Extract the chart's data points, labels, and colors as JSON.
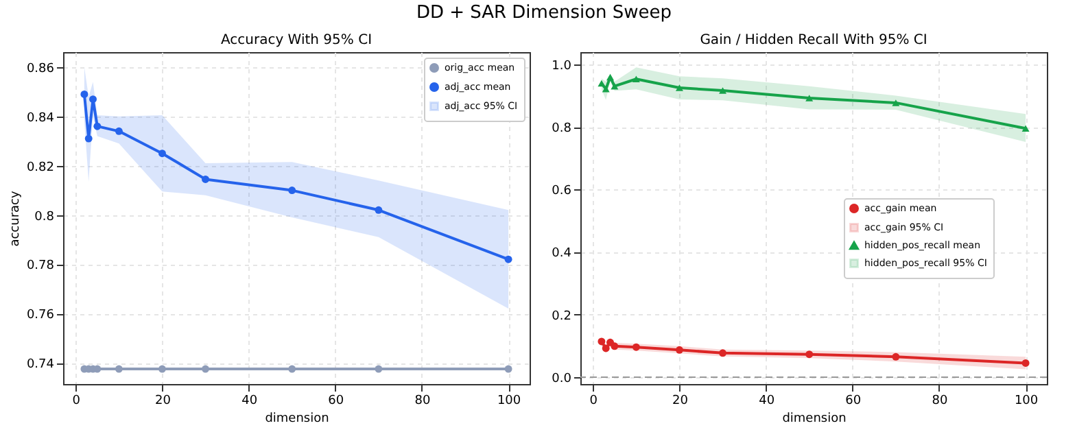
{
  "chart_data": [
    {
      "type": "line",
      "title": "Accuracy With 95% CI",
      "xlabel": "dimension",
      "ylabel": "accuracy",
      "annotations": [
        "DD + SAR Dimension Sweep",
        "adj_acc 95% CI"
      ],
      "x": [
        2,
        3,
        4,
        5,
        10,
        20,
        30,
        50,
        70,
        100
      ],
      "xlim": [
        -2.9,
        104.9
      ],
      "xticks": [
        0,
        20,
        40,
        60,
        80,
        100
      ],
      "ylim": [
        0.7314,
        0.8661
      ],
      "yticks": [
        0.74,
        0.76,
        0.78,
        0.8,
        0.82,
        0.84,
        0.86
      ],
      "grid": true,
      "legend": "top right",
      "series": [
        {
          "name": "orig_acc mean",
          "color": "#8e9cb8",
          "marker": "circle",
          "values": [
            0.7375,
            0.7375,
            0.7375,
            0.7375,
            0.7375,
            0.7375,
            0.7375,
            0.7375,
            0.7375,
            0.7375
          ]
        },
        {
          "name": "adj_acc mean",
          "color": "#2563eb",
          "marker": "circle",
          "values": [
            0.849,
            0.831,
            0.847,
            0.836,
            0.834,
            0.825,
            0.8145,
            0.81,
            0.802,
            0.782
          ],
          "lower": [
            0.838,
            0.8135,
            0.84,
            0.832,
            0.829,
            0.8095,
            0.808,
            0.799,
            0.791,
            0.762
          ],
          "upper": [
            0.86,
            0.848,
            0.854,
            0.8405,
            0.84,
            0.8405,
            0.821,
            0.8215,
            0.814,
            0.802
          ]
        }
      ]
    },
    {
      "type": "line",
      "title": "Gain / Hidden Recall With 95% CI",
      "xlabel": "dimension",
      "annotations": [
        "acc_gain 95% CI",
        "hidden_pos_recall 95% CI"
      ],
      "x": [
        2,
        3,
        4,
        5,
        10,
        20,
        30,
        50,
        70,
        100
      ],
      "xlim": [
        -2.9,
        104.9
      ],
      "xticks": [
        0,
        20,
        40,
        60,
        80,
        100
      ],
      "ylim": [
        -0.022,
        1.039
      ],
      "yticks": [
        {
          "value": 0,
          "label": "0.0"
        },
        {
          "value": 0.2,
          "label": "0.2"
        },
        {
          "value": 0.4,
          "label": "0.4"
        },
        {
          "value": 0.6,
          "label": "0.6"
        },
        {
          "value": 0.8,
          "label": "0.8"
        },
        {
          "value": 1,
          "label": "1.0"
        }
      ],
      "grid": true,
      "legend": "center right",
      "ref_lines": [
        {
          "axis": "y",
          "value": 0,
          "color": "#999999",
          "line_style": "dashed"
        }
      ],
      "series": [
        {
          "name": "acc_gain mean",
          "color": "#dc2626",
          "marker": "circle",
          "values": [
            0.114,
            0.092,
            0.111,
            0.099,
            0.096,
            0.087,
            0.077,
            0.073,
            0.065,
            0.045
          ],
          "lower": [
            0.102,
            0.08,
            0.099,
            0.088,
            0.085,
            0.076,
            0.066,
            0.061,
            0.05,
            0.025
          ],
          "upper": [
            0.126,
            0.104,
            0.123,
            0.11,
            0.107,
            0.099,
            0.088,
            0.085,
            0.08,
            0.065
          ]
        },
        {
          "name": "hidden_pos_recall mean",
          "color": "#16a34a",
          "marker": "triangle",
          "values": [
            0.939,
            0.921,
            0.959,
            0.93,
            0.953,
            0.925,
            0.916,
            0.892,
            0.877,
            0.795
          ],
          "lower": [
            0.92,
            0.886,
            0.945,
            0.915,
            0.92,
            0.888,
            0.885,
            0.856,
            0.855,
            0.752
          ],
          "upper": [
            0.955,
            0.945,
            0.97,
            0.945,
            0.99,
            0.962,
            0.955,
            0.93,
            0.9,
            0.841
          ]
        }
      ]
    }
  ]
}
